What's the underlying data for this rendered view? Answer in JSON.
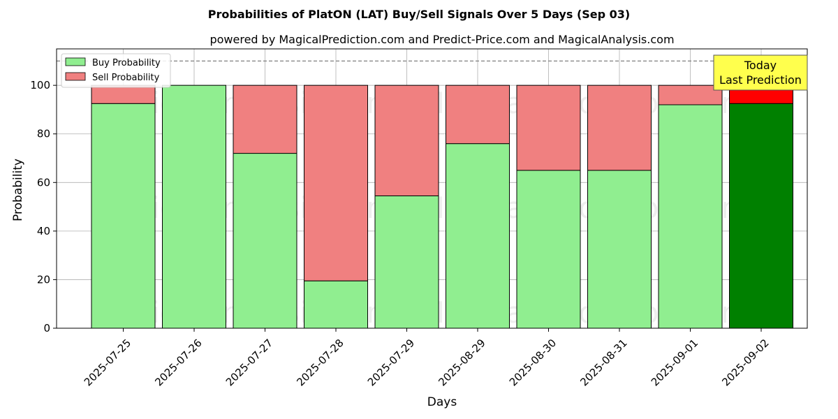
{
  "chart_data": {
    "type": "bar",
    "stacked": true,
    "title": "Probabilities of PlatON (LAT) Buy/Sell Signals Over 5 Days (Sep 03)",
    "subtitle": "powered by MagicalPrediction.com and Predict-Price.com and MagicalAnalysis.com",
    "xlabel": "Days",
    "ylabel": "Probability",
    "ylim": [
      0,
      115
    ],
    "yticks": [
      0,
      20,
      40,
      60,
      80,
      100
    ],
    "grid": true,
    "legend_position": "top-left",
    "reference_line": 110,
    "categories": [
      "2025-07-25",
      "2025-07-26",
      "2025-07-27",
      "2025-07-28",
      "2025-07-29",
      "2025-08-29",
      "2025-08-30",
      "2025-08-31",
      "2025-09-01",
      "2025-09-02"
    ],
    "series": [
      {
        "name": "Buy Probability",
        "color": "#90ee90",
        "highlight_color": "#008000",
        "values": [
          92.5,
          100,
          72,
          19.5,
          54.5,
          76,
          65,
          65,
          92,
          92.5
        ]
      },
      {
        "name": "Sell Probability",
        "color": "#f08080",
        "highlight_color": "#ff0000",
        "values": [
          7.5,
          0,
          28,
          80.5,
          45.5,
          24,
          35,
          35,
          8,
          7.5
        ]
      }
    ],
    "highlight_index": 9,
    "annotation": {
      "line1": "Today",
      "line2": "Last Prediction",
      "background": "#ffff4d"
    },
    "watermarks": [
      "MagicalAnalysis.com",
      "MagicalPrediction.com"
    ]
  }
}
